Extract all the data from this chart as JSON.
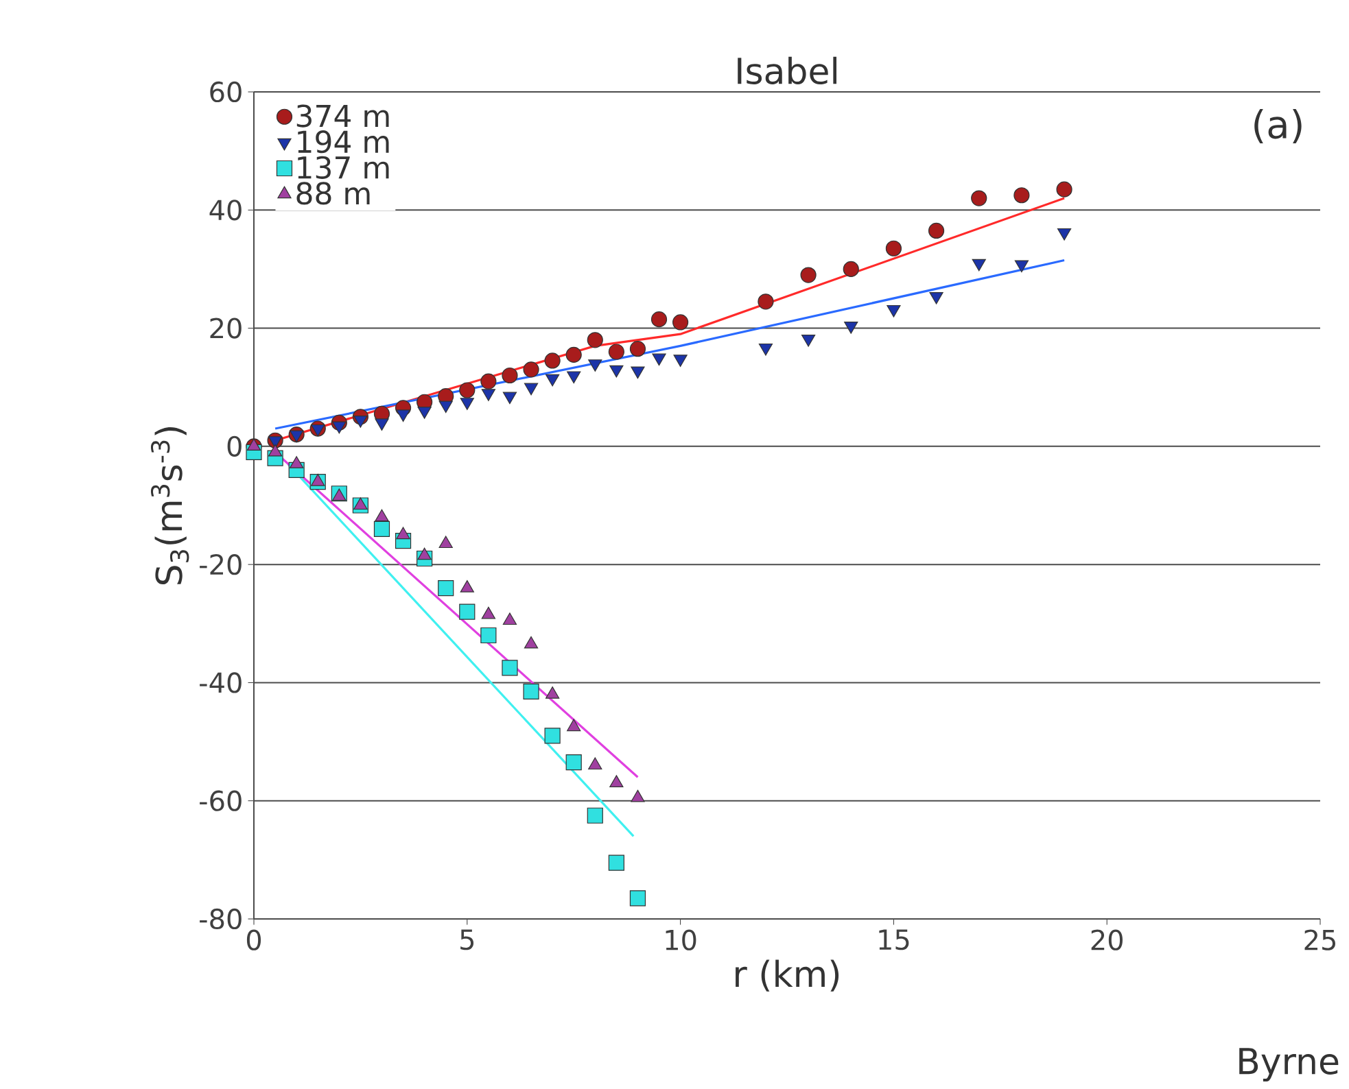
{
  "chart_data": {
    "type": "scatter",
    "title": "Isabel",
    "xlabel": "r (km)",
    "ylabel": "S$_{3}$(m$^{3}$s$^{-3}$)",
    "xlim": [
      0,
      25
    ],
    "ylim": [
      -80,
      60
    ],
    "xticks": [
      0,
      5,
      10,
      15,
      20,
      25
    ],
    "yticks": [
      -80,
      -60,
      -40,
      -20,
      0,
      20,
      40,
      60
    ],
    "grid": "y",
    "legend": "top left",
    "annotations": [
      "(a)",
      "Byrne"
    ],
    "series": [
      {
        "name": "374 m",
        "color": "#a81c1c",
        "marker": "circle",
        "x": [
          0,
          0.5,
          1,
          1.5,
          2,
          2.5,
          3,
          3.5,
          4,
          4.5,
          5,
          5.5,
          6,
          6.5,
          7,
          7.5,
          8,
          8.5,
          9,
          9.5,
          10,
          12,
          13,
          14,
          15,
          16,
          17,
          18,
          19
        ],
        "values": [
          0,
          1,
          2,
          3,
          4,
          5,
          5.5,
          6.5,
          7.5,
          8.5,
          9.5,
          11,
          12,
          13,
          14.5,
          15.5,
          18,
          16,
          16.5,
          21.5,
          21,
          24.5,
          29,
          30,
          33.5,
          36.5,
          42,
          42.5,
          43.5
        ]
      },
      {
        "name": "194 m",
        "color": "#1c34a8",
        "marker": "triangle-down",
        "x": [
          0.5,
          1,
          1.5,
          2,
          2.5,
          3,
          3.5,
          4,
          4.5,
          5,
          5.5,
          6,
          6.5,
          7,
          7.5,
          8,
          8.5,
          9,
          9.5,
          10,
          12,
          13,
          14,
          15,
          16,
          17,
          18,
          19
        ],
        "values": [
          1,
          2,
          3,
          3.5,
          4.5,
          4,
          5.5,
          6,
          7,
          7.5,
          9,
          8.5,
          10,
          11.5,
          12,
          14,
          13,
          12.8,
          15,
          14.8,
          16.7,
          18.2,
          20.4,
          23.2,
          25.4,
          31,
          30.8,
          36.2
        ]
      },
      {
        "name": "137 m",
        "color": "#30e0e0",
        "marker": "square",
        "x": [
          0,
          0.5,
          1,
          1.5,
          2,
          2.5,
          3,
          3.5,
          4,
          4.5,
          5,
          5.5,
          6,
          6.5,
          7,
          7.5,
          8,
          8.5,
          9
        ],
        "values": [
          -1,
          -2,
          -4,
          -6,
          -8,
          -10,
          -14,
          -16,
          -19,
          -24,
          -28,
          -32,
          -37.5,
          -41.5,
          -49,
          -53.5,
          -62.5,
          -70.5,
          -76.5
        ]
      },
      {
        "name": "88 m",
        "color": "#a040a0",
        "marker": "triangle",
        "x": [
          0,
          0.5,
          1,
          1.5,
          2,
          2.5,
          3,
          3.5,
          4,
          4.5,
          5,
          5.5,
          6,
          6.5,
          7,
          7.5,
          8,
          8.5,
          9
        ],
        "values": [
          0,
          -1,
          -3,
          -6,
          -8.5,
          -10,
          -12,
          -15,
          -18.5,
          -16.5,
          -24,
          -28.5,
          -29.5,
          -33.5,
          -42,
          -47.5,
          -54,
          -57,
          -59.5
        ]
      },
      {
        "type": "line",
        "color": "#ff2a2a",
        "x": [
          0.5,
          8,
          10,
          19
        ],
        "values": [
          1,
          17,
          19,
          42
        ]
      },
      {
        "type": "line",
        "color": "#2a6aff",
        "x": [
          0.5,
          10,
          19
        ],
        "values": [
          3,
          17,
          31.5
        ]
      },
      {
        "type": "line",
        "color": "#40f0f0",
        "x": [
          0.8,
          8.9
        ],
        "values": [
          -3,
          -66
        ]
      },
      {
        "type": "line",
        "color": "#e040e0",
        "x": [
          0.5,
          9
        ],
        "values": [
          -1,
          -56
        ]
      }
    ]
  }
}
